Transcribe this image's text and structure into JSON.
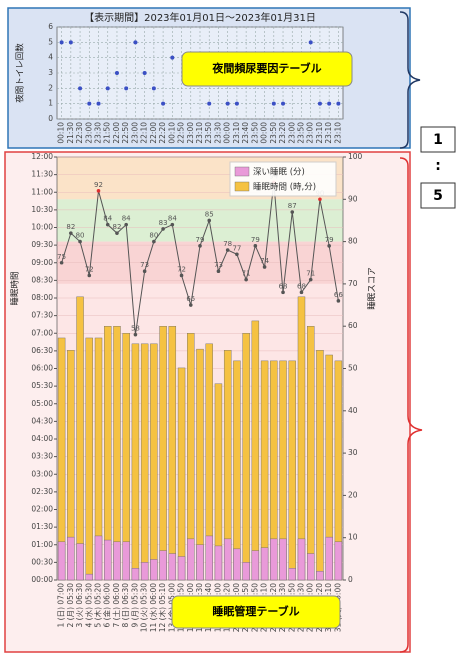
{
  "chart_data": [
    {
      "type": "scatter",
      "title": "【表示期間】2023年01月01日～2023年01月31日",
      "y_label": "夜間トイレ回数",
      "annotation": "夜間頻尿要因テーブル",
      "categories": [
        "00:10",
        "21:30",
        "22:30",
        "23:00",
        "23:30",
        "21:50",
        "22:00",
        "22:50",
        "23:00",
        "22:10",
        "22:00",
        "22:20",
        "00:10",
        "22:50",
        "23:00",
        "23:10",
        "23:50",
        "23:30",
        "00:00",
        "23:10",
        "23:40",
        "23:50",
        "00:00",
        "23:50",
        "23:20",
        "23:00",
        "23:50",
        "23:00",
        "23:10",
        "23:10",
        "23:10"
      ],
      "values": [
        5,
        5,
        2,
        1,
        1,
        2,
        3,
        2,
        5,
        3,
        2,
        1,
        4,
        null,
        null,
        null,
        1,
        null,
        1,
        1,
        null,
        null,
        null,
        1,
        1,
        null,
        null,
        5,
        1,
        1,
        1
      ],
      "color": "#3a4fc4",
      "ylim": [
        0,
        6
      ],
      "yticks": [
        0,
        1,
        2,
        3,
        4,
        5,
        6
      ],
      "grid": true
    },
    {
      "type": "bar",
      "y_label": "睡眠時間",
      "y2_label": "睡眠スコア",
      "annotation": "睡眠管理テーブル",
      "legend": "upper right",
      "categories": [
        "1 (日) 07:00",
        "2 (月) 05:30",
        "3 (火) 06:30",
        "4 (水) 05:30",
        "5 (木) 05:20",
        "6 (金) 06:00",
        "7 (土) 06:00",
        "8 (日) 06:30",
        "9 (月) 05:30",
        "10 (火) 05:30",
        "11 (水) 06:00",
        "12 (木) 05:10",
        "13 (金) 05:00",
        "14 (土) 06:50",
        "15 (日) 06:00",
        "16 (月) 05:30",
        "17 (火) 05:40",
        "18 (水) 06:00",
        "19 (木) 06:20",
        "20 (金) 06:00",
        "21 (土) 05:50",
        "22 (日) 05:50",
        "23 (月) 06:10",
        "24 (火) 06:20",
        "25 (水) 06:30",
        "26 (木) 06:50",
        "27 (金) 06:30",
        "28 (土) 06:00",
        "29 (日) 06:20",
        "30 (月) 06:10",
        "31 (火) 06:00"
      ],
      "series": [
        {
          "name": "睡眠時間 (時,分)",
          "color": "#f5c242",
          "values": [
            412,
            391,
            482,
            412,
            412,
            432,
            432,
            420,
            402,
            402,
            402,
            432,
            432,
            361,
            420,
            393,
            402,
            334,
            391,
            373,
            420,
            441,
            373,
            373,
            373,
            373,
            482,
            432,
            391,
            383,
            373
          ]
        },
        {
          "name": "深い睡眠 (分)",
          "color": "#e99ad9",
          "values": [
            65,
            73,
            62,
            10,
            75,
            68,
            65,
            65,
            20,
            30,
            35,
            50,
            45,
            40,
            70,
            60,
            75,
            58,
            70,
            53,
            30,
            50,
            55,
            70,
            70,
            20,
            70,
            45,
            15,
            73,
            65
          ]
        }
      ],
      "scores": {
        "axis": "y2",
        "color": "#555555",
        "alert_color": "#e03030",
        "alert_threshold": 90,
        "values": [
          75,
          82,
          80,
          72,
          92,
          84,
          82,
          84,
          58,
          73,
          80,
          83,
          84,
          72,
          65,
          79,
          85,
          73,
          78,
          77,
          71,
          79,
          74,
          94,
          68,
          87,
          68,
          71,
          90,
          79,
          66
        ]
      },
      "bands": [
        {
          "from": 90,
          "to": 100,
          "color": "#fbe3c8"
        },
        {
          "from": 80,
          "to": 90,
          "color": "#dcefd3"
        },
        {
          "from": 70,
          "to": 80,
          "color": "#f9d4d4"
        },
        {
          "from": 0,
          "to": 70,
          "color": "#fde6e6"
        }
      ],
      "ylim": [
        0,
        720
      ],
      "yticks": [
        {
          "value": 0,
          "label": "00:00"
        },
        {
          "value": 30,
          "label": "00:30"
        },
        {
          "value": 60,
          "label": "01:00"
        },
        {
          "value": 90,
          "label": "01:30"
        },
        {
          "value": 120,
          "label": "02:00"
        },
        {
          "value": 150,
          "label": "02:30"
        },
        {
          "value": 180,
          "label": "03:00"
        },
        {
          "value": 210,
          "label": "03:30"
        },
        {
          "value": 240,
          "label": "04:00"
        },
        {
          "value": 270,
          "label": "04:30"
        },
        {
          "value": 300,
          "label": "05:00"
        },
        {
          "value": 330,
          "label": "05:30"
        },
        {
          "value": 360,
          "label": "06:00"
        },
        {
          "value": 390,
          "label": "06:30"
        },
        {
          "value": 420,
          "label": "07:00"
        },
        {
          "value": 450,
          "label": "07:30"
        },
        {
          "value": 480,
          "label": "08:00"
        },
        {
          "value": 510,
          "label": "08:30"
        },
        {
          "value": 540,
          "label": "09:00"
        },
        {
          "value": 570,
          "label": "09:30"
        },
        {
          "value": 600,
          "label": "10:00"
        },
        {
          "value": 630,
          "label": "10:30"
        },
        {
          "value": 660,
          "label": "11:00"
        },
        {
          "value": 690,
          "label": "11:30"
        },
        {
          "value": 720,
          "label": "12:00"
        }
      ],
      "y2lim": [
        0,
        100
      ],
      "y2ticks": [
        0,
        10,
        20,
        30,
        40,
        50,
        60,
        70,
        80,
        90,
        100
      ],
      "grid": true
    }
  ],
  "side": {
    "first": "1",
    "separator": ":",
    "last": "5"
  }
}
